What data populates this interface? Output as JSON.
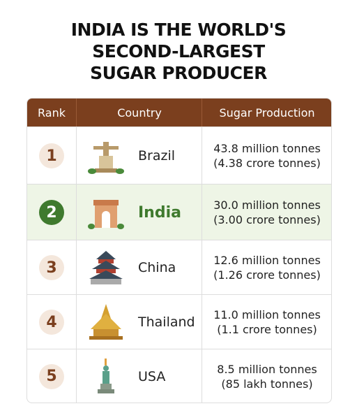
{
  "header": {
    "title_lines": [
      "INDIA IS THE WORLD'S",
      "SECOND-LARGEST",
      "SUGAR PRODUCER"
    ]
  },
  "table": {
    "columns": [
      "Rank",
      "Country",
      "Sugar Production"
    ],
    "rows": [
      [
        "1",
        "Brazil",
        "43.8 million tonnes",
        "(4.38 crore tonnes)"
      ],
      [
        "2",
        "India",
        "30.0 million tonnes",
        "(3.00 crore tonnes)"
      ],
      [
        "3",
        "China",
        "12.6 million tonnes",
        "(1.26 crore tonnes)"
      ],
      [
        "4",
        "Thailand",
        "11.0 million tonnes",
        "(1.1 crore tonnes)"
      ],
      [
        "5",
        "USA",
        "8.5 million tonnes",
        "(85 lakh tonnes)"
      ]
    ],
    "highlight_row": 1
  }
}
